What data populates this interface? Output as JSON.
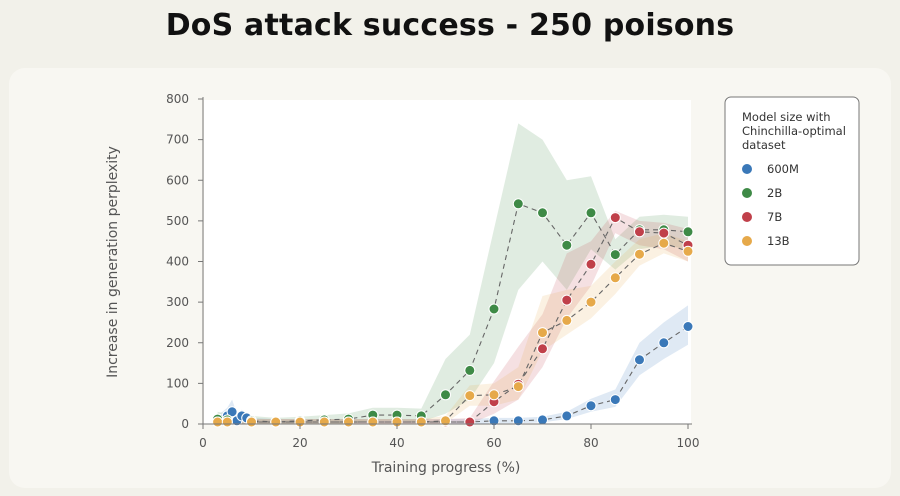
{
  "page": {
    "title": "DoS attack success - 250 poisons"
  },
  "chart_data": {
    "type": "line",
    "title": "DoS attack success - 250 poisons",
    "xlabel": "Training progress (%)",
    "ylabel": "Increase in generation perplexity",
    "xlim": [
      0,
      100
    ],
    "ylim": [
      0,
      800
    ],
    "xticks": [
      0,
      20,
      40,
      60,
      80,
      100
    ],
    "yticks": [
      0,
      100,
      200,
      300,
      400,
      500,
      600,
      700,
      800
    ],
    "legend": {
      "title_lines": [
        "Model size with",
        "Chinchilla-optimal",
        "dataset"
      ],
      "position": "right"
    },
    "series": [
      {
        "name": "600M",
        "color": "#3a78b8",
        "x": [
          3,
          4,
          5,
          6,
          7,
          8,
          9,
          10,
          15,
          20,
          25,
          30,
          35,
          40,
          45,
          50,
          55,
          60,
          65,
          70,
          75,
          80,
          85,
          90,
          95,
          100
        ],
        "y": [
          5,
          12,
          20,
          30,
          8,
          20,
          15,
          5,
          5,
          5,
          5,
          5,
          5,
          5,
          5,
          5,
          5,
          8,
          8,
          10,
          20,
          45,
          60,
          158,
          200,
          240
        ],
        "lower": [
          0,
          0,
          0,
          0,
          0,
          0,
          0,
          0,
          0,
          0,
          0,
          0,
          0,
          0,
          0,
          0,
          0,
          2,
          2,
          4,
          12,
          30,
          42,
          120,
          160,
          195
        ],
        "upper": [
          20,
          30,
          40,
          60,
          25,
          35,
          28,
          15,
          12,
          12,
          12,
          12,
          12,
          12,
          12,
          12,
          12,
          15,
          15,
          18,
          30,
          62,
          85,
          200,
          250,
          292
        ]
      },
      {
        "name": "2B",
        "color": "#3e8a46",
        "x": [
          3,
          5,
          10,
          15,
          20,
          25,
          30,
          35,
          40,
          45,
          50,
          55,
          60,
          65,
          70,
          75,
          80,
          85,
          90,
          95,
          100
        ],
        "y": [
          12,
          10,
          8,
          5,
          8,
          10,
          12,
          22,
          22,
          20,
          72,
          132,
          283,
          542,
          520,
          440,
          520,
          417,
          478,
          478,
          473
        ],
        "lower": [
          0,
          0,
          0,
          0,
          0,
          0,
          0,
          8,
          8,
          6,
          25,
          60,
          150,
          330,
          400,
          330,
          430,
          380,
          430,
          440,
          430
        ],
        "upper": [
          30,
          25,
          20,
          15,
          18,
          22,
          26,
          40,
          40,
          38,
          160,
          220,
          480,
          740,
          700,
          600,
          610,
          455,
          510,
          515,
          510
        ]
      },
      {
        "name": "7B",
        "color": "#c0404a",
        "x": [
          3,
          5,
          10,
          15,
          20,
          25,
          30,
          35,
          40,
          45,
          50,
          55,
          60,
          65,
          70,
          75,
          80,
          85,
          90,
          95,
          100
        ],
        "y": [
          5,
          5,
          5,
          5,
          5,
          5,
          5,
          5,
          5,
          5,
          5,
          5,
          55,
          98,
          185,
          305,
          393,
          508,
          473,
          470,
          440
        ],
        "lower": [
          0,
          0,
          0,
          0,
          0,
          0,
          0,
          0,
          0,
          0,
          0,
          0,
          25,
          60,
          140,
          260,
          340,
          470,
          440,
          430,
          400
        ],
        "upper": [
          12,
          12,
          12,
          12,
          12,
          12,
          12,
          12,
          12,
          12,
          12,
          15,
          105,
          190,
          270,
          420,
          450,
          525,
          500,
          495,
          480
        ]
      },
      {
        "name": "13B",
        "color": "#e6a94a",
        "x": [
          3,
          5,
          10,
          15,
          20,
          25,
          30,
          35,
          40,
          45,
          50,
          55,
          60,
          65,
          70,
          75,
          80,
          85,
          90,
          95,
          100
        ],
        "y": [
          5,
          5,
          5,
          5,
          5,
          5,
          5,
          5,
          5,
          5,
          8,
          70,
          72,
          92,
          225,
          255,
          300,
          360,
          418,
          445,
          425
        ],
        "lower": [
          0,
          0,
          0,
          0,
          0,
          0,
          0,
          0,
          0,
          0,
          2,
          45,
          45,
          60,
          180,
          220,
          260,
          320,
          390,
          420,
          400
        ],
        "upper": [
          12,
          12,
          12,
          12,
          12,
          12,
          12,
          12,
          12,
          12,
          20,
          95,
          100,
          140,
          315,
          330,
          340,
          400,
          455,
          470,
          450
        ]
      }
    ]
  }
}
